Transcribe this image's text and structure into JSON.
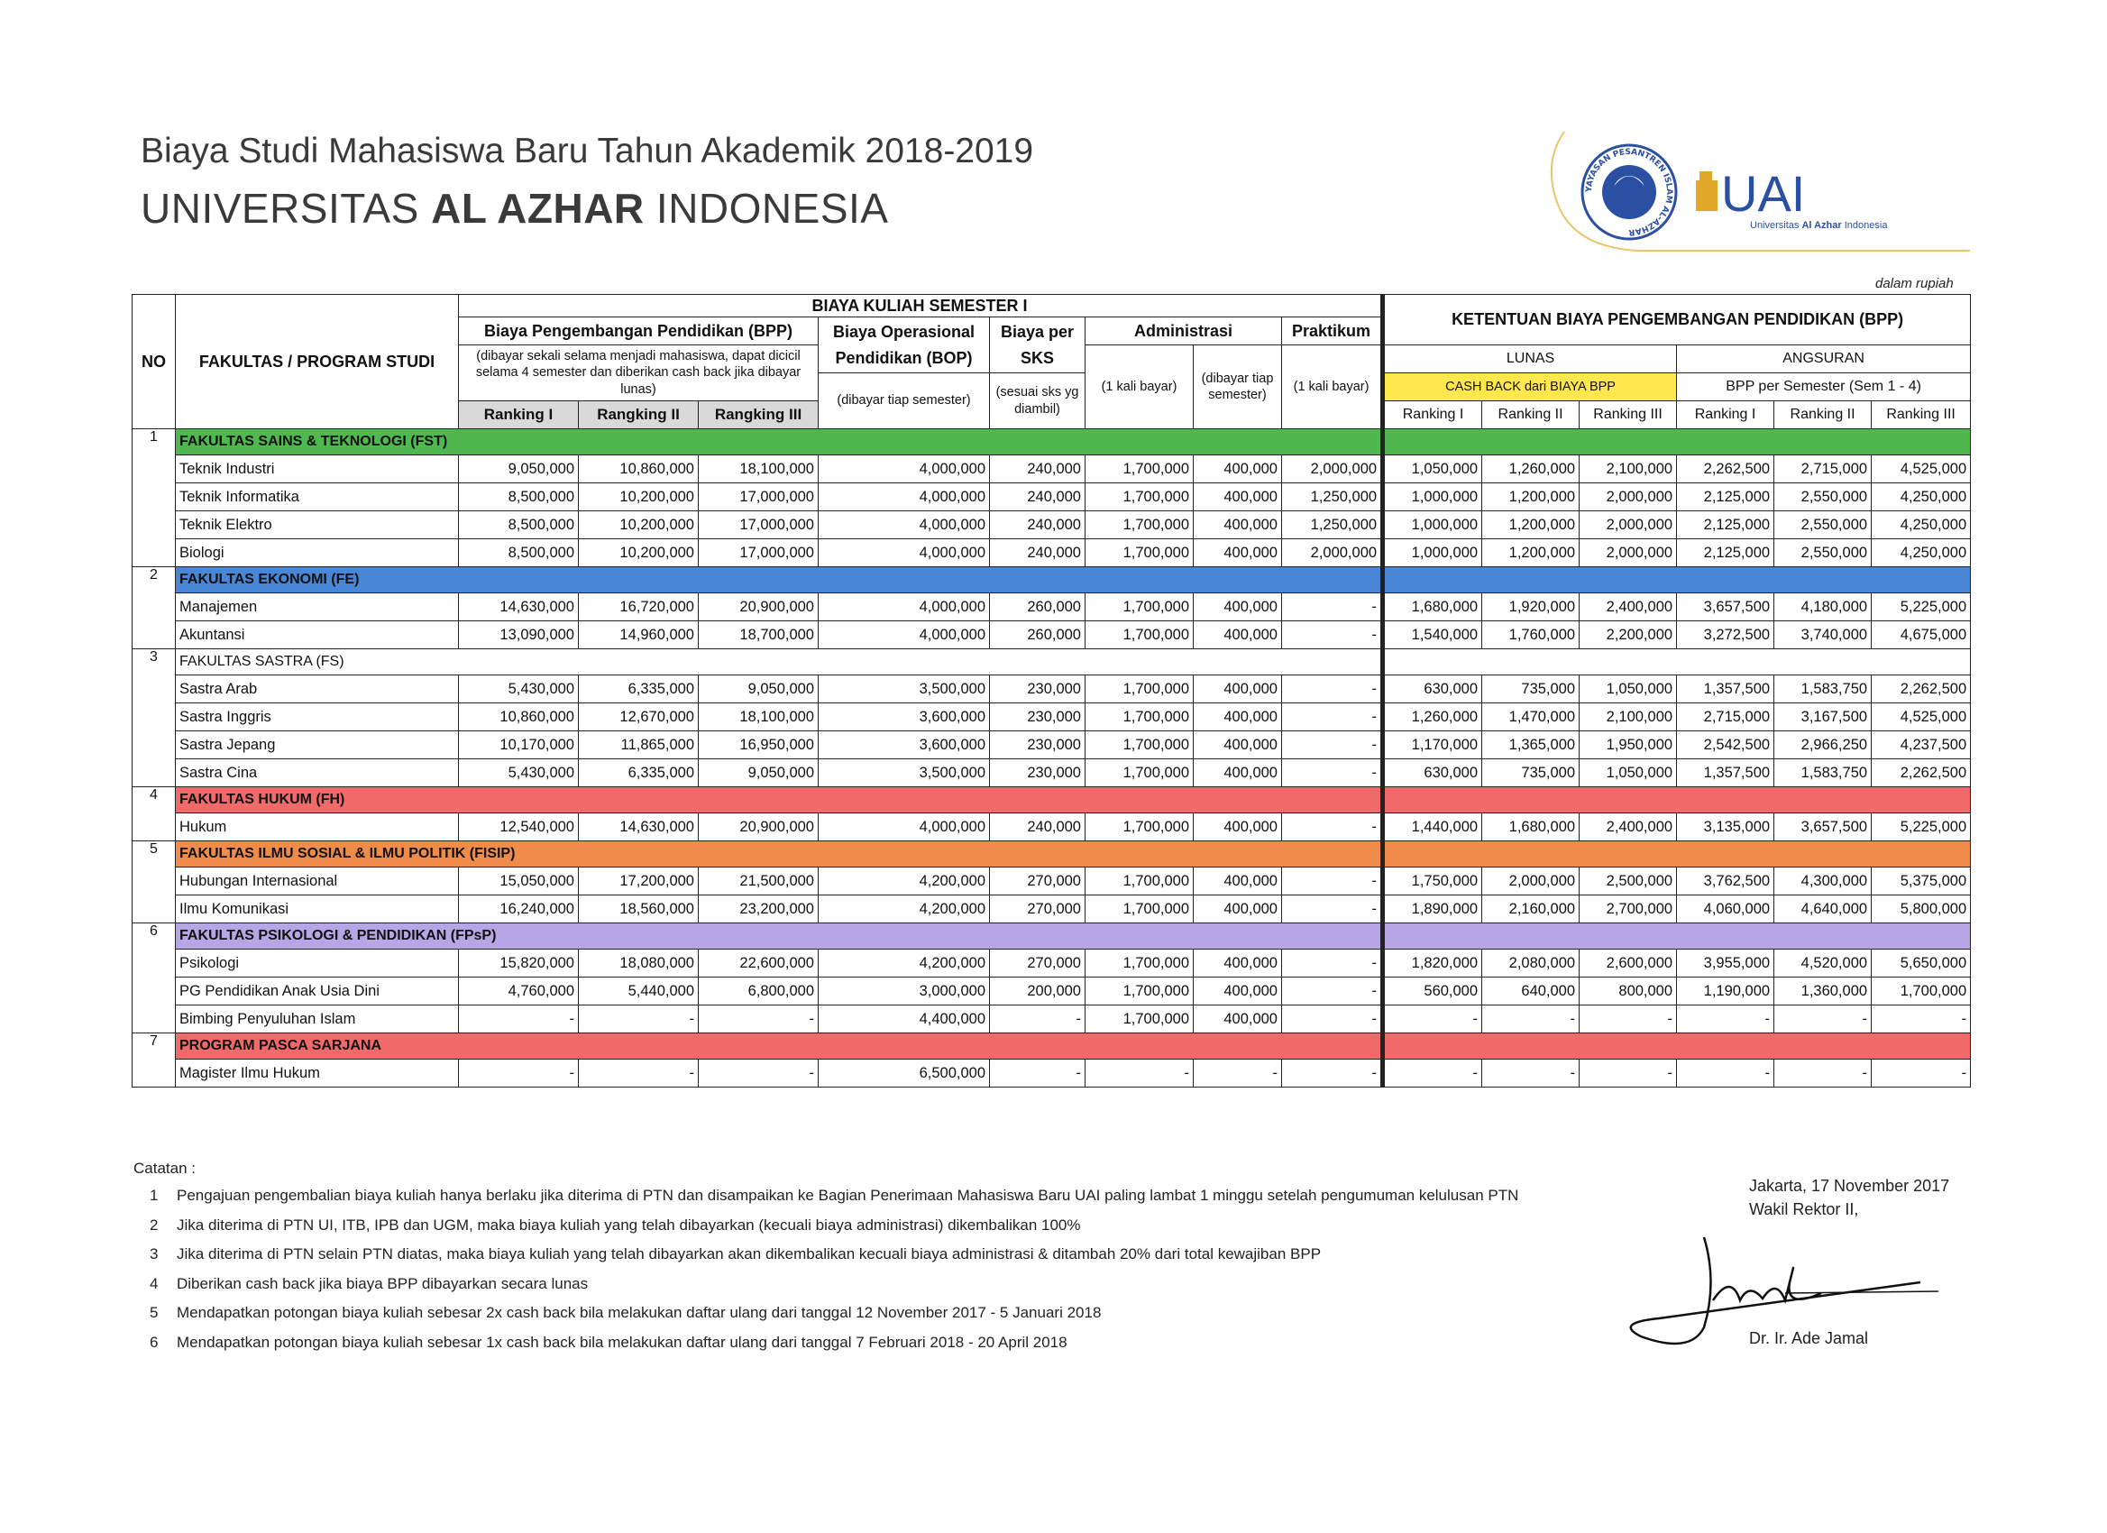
{
  "header": {
    "title_line1": "Biaya Studi Mahasiswa Baru Tahun Akademik 2018-2019",
    "title_line2_a": "UNIVERSITAS ",
    "title_line2_b": "AL AZHAR",
    "title_line2_c": " INDONESIA",
    "logo_ring_text": "YAYASAN PESANTREN ISLAM AL-AZHAR",
    "logo_brand": "UAI",
    "logo_sub_a": "Universitas ",
    "logo_sub_b": "Al Azhar",
    "logo_sub_c": " Indonesia",
    "unit_note": "dalam rupiah"
  },
  "table_head": {
    "no": "NO",
    "faculty": "FAKULTAS / PROGRAM STUDI",
    "semester_group": "BIAYA KULIAH SEMESTER I",
    "bpp": "Biaya Pengembangan Pendidikan (BPP)",
    "bpp_note": "(dibayar sekali selama menjadi mahasiswa, dapat dicicil selama 4 semester dan diberikan cash back jika dibayar lunas)",
    "bop": "Biaya Operasional Pendidikan (BOP)",
    "bop_note": "(dibayar tiap semester)",
    "sks": "Biaya per SKS",
    "sks_note": "(sesuai sks yg diambil)",
    "admin": "Administrasi",
    "admin_note1": "(1 kali bayar)",
    "admin_note2": "(dibayar tiap semester)",
    "praktikum": "Praktikum",
    "praktikum_note": "(1 kali bayar)",
    "rank1": "Ranking I",
    "rank2": "Rangking II",
    "rank3": "Rangking III",
    "ketentuan": "KETENTUAN BIAYA PENGEMBANGAN PENDIDIKAN (BPP)",
    "lunas": "LUNAS",
    "angsuran": "ANGSURAN",
    "cashback": "CASH BACK dari BIAYA BPP",
    "bpp_semester": "BPP per Semester (Sem 1 - 4)",
    "r1": "Ranking I",
    "r2": "Ranking II",
    "r3": "Ranking III"
  },
  "sections": [
    {
      "no": "1",
      "name": "FAKULTAS SAINS & TEKNOLOGI (FST)",
      "color": "#4fb94f",
      "rows": [
        [
          "Teknik Industri",
          "9,050,000",
          "10,860,000",
          "18,100,000",
          "4,000,000",
          "240,000",
          "1,700,000",
          "400,000",
          "2,000,000",
          "1,050,000",
          "1,260,000",
          "2,100,000",
          "2,262,500",
          "2,715,000",
          "4,525,000"
        ],
        [
          "Teknik Informatika",
          "8,500,000",
          "10,200,000",
          "17,000,000",
          "4,000,000",
          "240,000",
          "1,700,000",
          "400,000",
          "1,250,000",
          "1,000,000",
          "1,200,000",
          "2,000,000",
          "2,125,000",
          "2,550,000",
          "4,250,000"
        ],
        [
          "Teknik Elektro",
          "8,500,000",
          "10,200,000",
          "17,000,000",
          "4,000,000",
          "240,000",
          "1,700,000",
          "400,000",
          "1,250,000",
          "1,000,000",
          "1,200,000",
          "2,000,000",
          "2,125,000",
          "2,550,000",
          "4,250,000"
        ],
        [
          "Biologi",
          "8,500,000",
          "10,200,000",
          "17,000,000",
          "4,000,000",
          "240,000",
          "1,700,000",
          "400,000",
          "2,000,000",
          "1,000,000",
          "1,200,000",
          "2,000,000",
          "2,125,000",
          "2,550,000",
          "4,250,000"
        ]
      ]
    },
    {
      "no": "2",
      "name": "FAKULTAS EKONOMI (FE)",
      "color": "#4a86d6",
      "rows": [
        [
          "Manajemen",
          "14,630,000",
          "16,720,000",
          "20,900,000",
          "4,000,000",
          "260,000",
          "1,700,000",
          "400,000",
          "-",
          "1,680,000",
          "1,920,000",
          "2,400,000",
          "3,657,500",
          "4,180,000",
          "5,225,000"
        ],
        [
          "Akuntansi",
          "13,090,000",
          "14,960,000",
          "18,700,000",
          "4,000,000",
          "260,000",
          "1,700,000",
          "400,000",
          "-",
          "1,540,000",
          "1,760,000",
          "2,200,000",
          "3,272,500",
          "3,740,000",
          "4,675,000"
        ]
      ]
    },
    {
      "no": "3",
      "name": "FAKULTAS SASTRA (FS)",
      "color": "#ffffff",
      "rows": [
        [
          "Sastra Arab",
          "5,430,000",
          "6,335,000",
          "9,050,000",
          "3,500,000",
          "230,000",
          "1,700,000",
          "400,000",
          "-",
          "630,000",
          "735,000",
          "1,050,000",
          "1,357,500",
          "1,583,750",
          "2,262,500"
        ],
        [
          "Sastra Inggris",
          "10,860,000",
          "12,670,000",
          "18,100,000",
          "3,600,000",
          "230,000",
          "1,700,000",
          "400,000",
          "-",
          "1,260,000",
          "1,470,000",
          "2,100,000",
          "2,715,000",
          "3,167,500",
          "4,525,000"
        ],
        [
          "Sastra Jepang",
          "10,170,000",
          "11,865,000",
          "16,950,000",
          "3,600,000",
          "230,000",
          "1,700,000",
          "400,000",
          "-",
          "1,170,000",
          "1,365,000",
          "1,950,000",
          "2,542,500",
          "2,966,250",
          "4,237,500"
        ],
        [
          "Sastra Cina",
          "5,430,000",
          "6,335,000",
          "9,050,000",
          "3,500,000",
          "230,000",
          "1,700,000",
          "400,000",
          "-",
          "630,000",
          "735,000",
          "1,050,000",
          "1,357,500",
          "1,583,750",
          "2,262,500"
        ]
      ]
    },
    {
      "no": "4",
      "name": "FAKULTAS HUKUM (FH)",
      "color": "#f06a6a",
      "rows": [
        [
          "Hukum",
          "12,540,000",
          "14,630,000",
          "20,900,000",
          "4,000,000",
          "240,000",
          "1,700,000",
          "400,000",
          "-",
          "1,440,000",
          "1,680,000",
          "2,400,000",
          "3,135,000",
          "3,657,500",
          "5,225,000"
        ]
      ]
    },
    {
      "no": "5",
      "name": "FAKULTAS ILMU SOSIAL & ILMU POLITIK (FISIP)",
      "color": "#f08c4a",
      "rows": [
        [
          "Hubungan Internasional",
          "15,050,000",
          "17,200,000",
          "21,500,000",
          "4,200,000",
          "270,000",
          "1,700,000",
          "400,000",
          "-",
          "1,750,000",
          "2,000,000",
          "2,500,000",
          "3,762,500",
          "4,300,000",
          "5,375,000"
        ],
        [
          "Ilmu Komunikasi",
          "16,240,000",
          "18,560,000",
          "23,200,000",
          "4,200,000",
          "270,000",
          "1,700,000",
          "400,000",
          "-",
          "1,890,000",
          "2,160,000",
          "2,700,000",
          "4,060,000",
          "4,640,000",
          "5,800,000"
        ]
      ]
    },
    {
      "no": "6",
      "name": "FAKULTAS PSIKOLOGI & PENDIDIKAN (FPsP)",
      "color": "#b7a6e6",
      "rows": [
        [
          "Psikologi",
          "15,820,000",
          "18,080,000",
          "22,600,000",
          "4,200,000",
          "270,000",
          "1,700,000",
          "400,000",
          "-",
          "1,820,000",
          "2,080,000",
          "2,600,000",
          "3,955,000",
          "4,520,000",
          "5,650,000"
        ],
        [
          "PG Pendidikan Anak Usia Dini",
          "4,760,000",
          "5,440,000",
          "6,800,000",
          "3,000,000",
          "200,000",
          "1,700,000",
          "400,000",
          "-",
          "560,000",
          "640,000",
          "800,000",
          "1,190,000",
          "1,360,000",
          "1,700,000"
        ],
        [
          "Bimbing Penyuluhan Islam",
          "-",
          "-",
          "-",
          "4,400,000",
          "-",
          "1,700,000",
          "400,000",
          "-",
          "-",
          "-",
          "-",
          "-",
          "-",
          "-"
        ]
      ]
    },
    {
      "no": "7",
      "name": "PROGRAM PASCA SARJANA",
      "color": "#f06a6a",
      "rows": [
        [
          "Magister Ilmu Hukum",
          "-",
          "-",
          "-",
          "6,500,000",
          "-",
          "-",
          "-",
          "-",
          "-",
          "-",
          "-",
          "-",
          "-",
          "-"
        ]
      ]
    }
  ],
  "notes": {
    "heading": "Catatan :",
    "items": [
      {
        "idx": "1",
        "text": "Pengajuan pengembalian biaya kuliah hanya berlaku jika diterima di PTN dan disampaikan ke Bagian Penerimaan Mahasiswa Baru UAI paling lambat 1 minggu setelah pengumuman kelulusan PTN"
      },
      {
        "idx": "2",
        "text": "Jika diterima di PTN UI, ITB, IPB dan UGM, maka biaya kuliah yang telah dibayarkan (kecuali biaya administrasi) dikembalikan 100%"
      },
      {
        "idx": "3",
        "text": "Jika diterima di PTN selain PTN diatas, maka biaya kuliah yang telah dibayarkan akan dikembalikan kecuali biaya administrasi & ditambah 20% dari total kewajiban BPP"
      },
      {
        "idx": "4",
        "text": "Diberikan cash back jika biaya BPP dibayarkan secara lunas"
      },
      {
        "idx": "5",
        "text": "Mendapatkan potongan biaya kuliah sebesar 2x cash back bila melakukan daftar ulang dari tanggal 12 November 2017 - 5 Januari 2018"
      },
      {
        "idx": "6",
        "text": "Mendapatkan potongan biaya kuliah sebesar 1x cash back bila melakukan daftar ulang dari tanggal 7 Februari 2018 - 20 April 2018"
      }
    ]
  },
  "signature": {
    "place_date": "Jakarta, 17 November 2017",
    "role": "Wakil Rektor II,",
    "name": "Dr. Ir. Ade Jamal"
  },
  "colors": {
    "cashback_bg": "#ffe74d",
    "logo_blue": "#2b4fa3",
    "logo_gold": "#e0a92a"
  }
}
